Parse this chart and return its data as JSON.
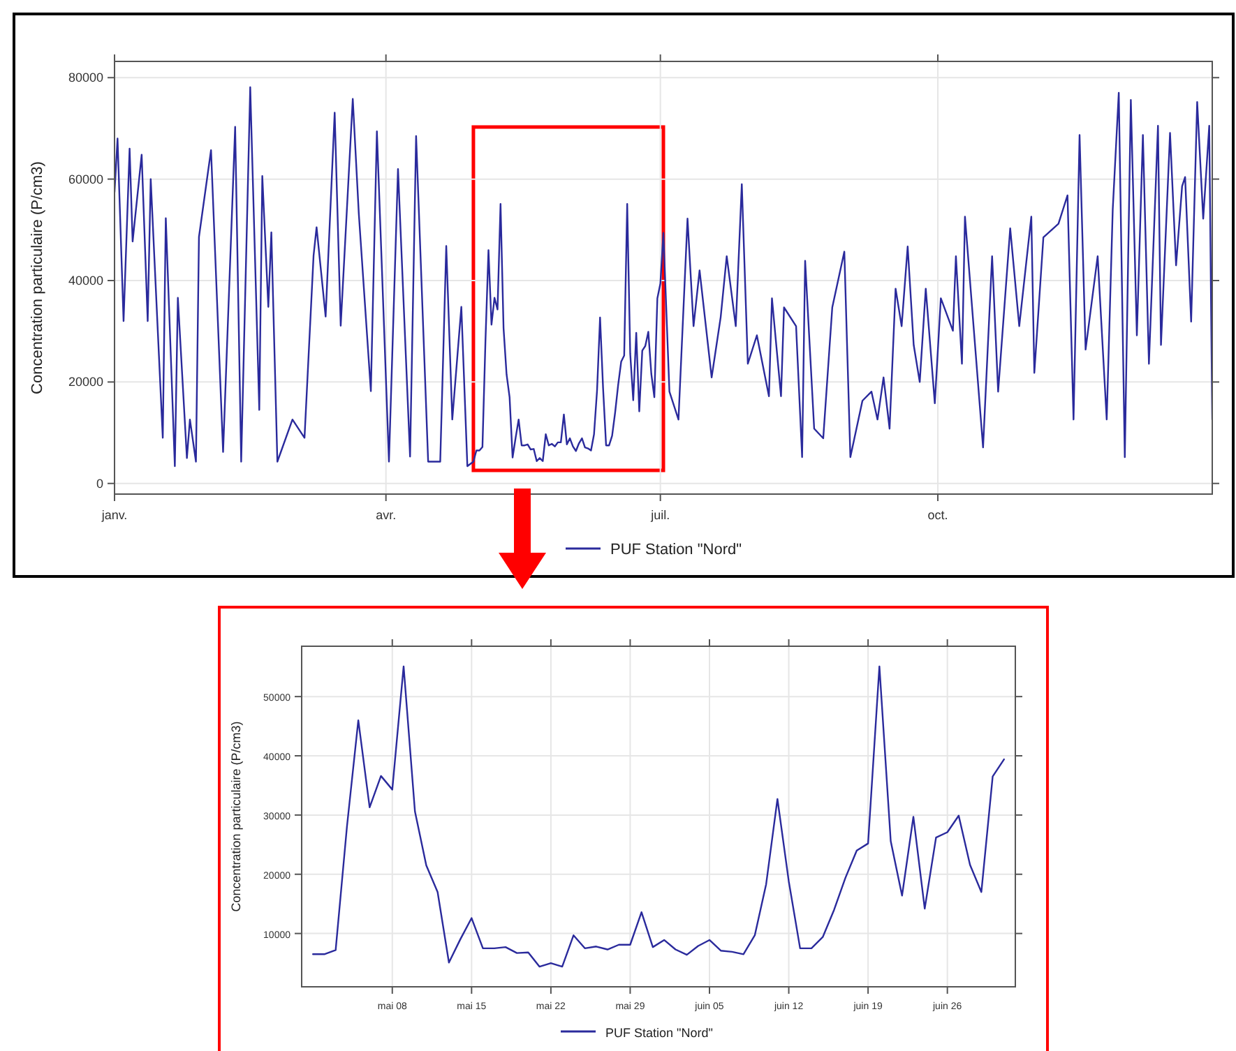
{
  "chart_data": [
    {
      "type": "line",
      "ylabel": "Concentration particulaire (P/cm3)",
      "legend": "bottom",
      "grid": true,
      "line_style": "solid",
      "marker": "none",
      "xlim": [
        "--01-01",
        "--12-31"
      ],
      "ylim": [
        -2100,
        83200
      ],
      "xticks": [
        {
          "value": "--01-01",
          "label": "janv."
        },
        {
          "value": "--04-01",
          "label": "avr."
        },
        {
          "value": "--07-01",
          "label": "juil."
        },
        {
          "value": "--10-01",
          "label": "oct."
        }
      ],
      "yticks": [
        0,
        20000,
        40000,
        60000,
        80000
      ],
      "series": [
        {
          "name": "PUF Station \"Nord\"",
          "color": "#2a2a9c",
          "x": [
            "--01-01",
            "--01-02",
            "--01-04",
            "--01-06",
            "--01-07",
            "--01-10",
            "--01-12",
            "--01-13",
            "--01-17",
            "--01-18",
            "--01-21",
            "--01-22",
            "--01-25",
            "--01-26",
            "--01-28",
            "--01-29",
            "--02-02",
            "--02-06",
            "--02-10",
            "--02-12",
            "--02-15",
            "--02-18",
            "--02-19",
            "--02-21",
            "--02-22",
            "--02-24",
            "--03-01",
            "--03-05",
            "--03-08",
            "--03-09",
            "--03-12",
            "--03-15",
            "--03-17",
            "--03-21",
            "--03-23",
            "--03-27",
            "--03-29",
            "--04-02",
            "--04-05",
            "--04-09",
            "--04-11",
            "--04-15",
            "--04-19",
            "--04-21",
            "--04-23",
            "--04-26",
            "--04-28",
            "--04-30",
            "--05-01",
            "--05-02",
            "--05-03",
            "--05-04",
            "--05-05",
            "--05-06",
            "--05-07",
            "--05-08",
            "--05-09",
            "--05-10",
            "--05-11",
            "--05-12",
            "--05-13",
            "--05-14",
            "--05-15",
            "--05-16",
            "--05-17",
            "--05-18",
            "--05-19",
            "--05-20",
            "--05-21",
            "--05-22",
            "--05-23",
            "--05-24",
            "--05-25",
            "--05-26",
            "--05-27",
            "--05-28",
            "--05-29",
            "--05-30",
            "--05-31",
            "--06-01",
            "--06-02",
            "--06-03",
            "--06-04",
            "--06-05",
            "--06-06",
            "--06-07",
            "--06-08",
            "--06-09",
            "--06-10",
            "--06-11",
            "--06-12",
            "--06-13",
            "--06-14",
            "--06-15",
            "--06-16",
            "--06-17",
            "--06-18",
            "--06-19",
            "--06-20",
            "--06-21",
            "--06-22",
            "--06-23",
            "--06-24",
            "--06-25",
            "--06-26",
            "--06-27",
            "--06-28",
            "--06-29",
            "--06-30",
            "--07-01",
            "--07-02",
            "--07-04",
            "--07-07",
            "--07-10",
            "--07-12",
            "--07-14",
            "--07-18",
            "--07-21",
            "--07-23",
            "--07-26",
            "--07-28",
            "--07-30",
            "--08-02",
            "--08-06",
            "--08-07",
            "--08-10",
            "--08-11",
            "--08-15",
            "--08-17",
            "--08-18",
            "--08-21",
            "--08-24",
            "--08-27",
            "--08-31",
            "--09-02",
            "--09-06",
            "--09-09",
            "--09-11",
            "--09-13",
            "--09-15",
            "--09-17",
            "--09-19",
            "--09-21",
            "--09-23",
            "--09-25",
            "--09-27",
            "--09-30",
            "--10-02",
            "--10-06",
            "--10-07",
            "--10-09",
            "--10-10",
            "--10-16",
            "--10-19",
            "--10-21",
            "--10-25",
            "--10-28",
            "--11-01",
            "--11-02",
            "--11-05",
            "--11-10",
            "--11-13",
            "--11-15",
            "--11-17",
            "--11-19",
            "--11-23",
            "--11-26",
            "--11-28",
            "--11-30",
            "--12-02",
            "--12-04",
            "--12-06",
            "--12-08",
            "--12-10",
            "--12-13",
            "--12-14",
            "--12-17",
            "--12-19",
            "--12-21",
            "--12-22",
            "--12-24",
            "--12-26",
            "--12-28",
            "--12-30",
            "--12-31"
          ],
          "values": [
            57400,
            68000,
            32000,
            66000,
            47700,
            64800,
            32000,
            60000,
            9000,
            52300,
            3400,
            36600,
            5000,
            12600,
            4300,
            48600,
            65700,
            6200,
            70300,
            4300,
            78100,
            14500,
            60600,
            34800,
            49500,
            4300,
            12600,
            9000,
            44900,
            50500,
            32900,
            73100,
            31100,
            75800,
            53200,
            18200,
            69400,
            4300,
            62000,
            5300,
            68500,
            4300,
            4300,
            46800,
            12600,
            34800,
            3400,
            4300,
            6500,
            6500,
            7200,
            28100,
            46000,
            31300,
            36600,
            34300,
            55100,
            30600,
            21500,
            17000,
            5100,
            9000,
            12600,
            7500,
            7500,
            7700,
            6700,
            6800,
            4400,
            5000,
            4400,
            9700,
            7500,
            7800,
            7300,
            8100,
            8100,
            13600,
            7700,
            8900,
            7300,
            6400,
            7900,
            8900,
            7100,
            6900,
            6500,
            9700,
            18300,
            32700,
            18800,
            7500,
            7500,
            9400,
            14000,
            19400,
            24000,
            25200,
            55100,
            25600,
            16400,
            29700,
            14200,
            26200,
            27100,
            29900,
            21600,
            17000,
            36500,
            39400,
            49400,
            18100,
            12600,
            52200,
            31000,
            42000,
            20900,
            32800,
            44800,
            31000,
            59000,
            23600,
            29200,
            17200,
            36500,
            17200,
            34700,
            31000,
            5200,
            43900,
            10800,
            8900,
            34700,
            45700,
            5200,
            16300,
            18100,
            12600,
            20900,
            10800,
            38400,
            31000,
            46700,
            27300,
            20000,
            38400,
            15800,
            36500,
            30100,
            44800,
            23600,
            52600,
            7100,
            44800,
            18100,
            50300,
            31000,
            52600,
            21800,
            48500,
            51200,
            56800,
            12600,
            68700,
            26400,
            44800,
            12600,
            54000,
            77000,
            5200,
            75600,
            29200,
            68700,
            23600,
            70500,
            27300,
            69100,
            43000,
            58600,
            60400,
            31900,
            75200,
            52200,
            70500,
            12600
          ]
        }
      ]
    },
    {
      "type": "line",
      "ylabel": "Concentration particulaire (P/cm3)",
      "legend": "bottom",
      "grid": true,
      "line_style": "solid",
      "marker": "none",
      "xlim": [
        "--04-30",
        "--07-02"
      ],
      "ylim": [
        1000,
        58500
      ],
      "xticks": [
        {
          "value": "--05-08",
          "label": "mai 08"
        },
        {
          "value": "--05-15",
          "label": "mai 15"
        },
        {
          "value": "--05-22",
          "label": "mai 22"
        },
        {
          "value": "--05-29",
          "label": "mai 29"
        },
        {
          "value": "--06-05",
          "label": "juin 05"
        },
        {
          "value": "--06-12",
          "label": "juin 12"
        },
        {
          "value": "--06-19",
          "label": "juin 19"
        },
        {
          "value": "--06-26",
          "label": "juin 26"
        }
      ],
      "yticks": [
        10000,
        20000,
        30000,
        40000,
        50000
      ],
      "series": [
        {
          "name": "PUF Station \"Nord\"",
          "color": "#2a2a9c",
          "x": [
            "--05-01",
            "--05-02",
            "--05-03",
            "--05-04",
            "--05-05",
            "--05-06",
            "--05-07",
            "--05-08",
            "--05-09",
            "--05-10",
            "--05-11",
            "--05-12",
            "--05-13",
            "--05-14",
            "--05-15",
            "--05-16",
            "--05-17",
            "--05-18",
            "--05-19",
            "--05-20",
            "--05-21",
            "--05-22",
            "--05-23",
            "--05-24",
            "--05-25",
            "--05-26",
            "--05-27",
            "--05-28",
            "--05-29",
            "--05-30",
            "--05-31",
            "--06-01",
            "--06-02",
            "--06-03",
            "--06-04",
            "--06-05",
            "--06-06",
            "--06-07",
            "--06-08",
            "--06-09",
            "--06-10",
            "--06-11",
            "--06-12",
            "--06-13",
            "--06-14",
            "--06-15",
            "--06-16",
            "--06-17",
            "--06-18",
            "--06-19",
            "--06-20",
            "--06-21",
            "--06-22",
            "--06-23",
            "--06-24",
            "--06-25",
            "--06-26",
            "--06-27",
            "--06-28",
            "--06-29",
            "--06-30",
            "--07-01"
          ],
          "values": [
            6500,
            6500,
            7200,
            28100,
            46000,
            31300,
            36600,
            34300,
            55100,
            30600,
            21500,
            17000,
            5100,
            9000,
            12600,
            7500,
            7500,
            7700,
            6700,
            6800,
            4400,
            5000,
            4400,
            9700,
            7500,
            7800,
            7300,
            8100,
            8100,
            13600,
            7700,
            8900,
            7300,
            6400,
            7900,
            8900,
            7100,
            6900,
            6500,
            9700,
            18300,
            32700,
            18800,
            7500,
            7500,
            9400,
            14000,
            19400,
            24000,
            25200,
            55100,
            25600,
            16400,
            29700,
            14200,
            26200,
            27100,
            29900,
            21600,
            17000,
            36500,
            39400
          ]
        }
      ]
    }
  ]
}
